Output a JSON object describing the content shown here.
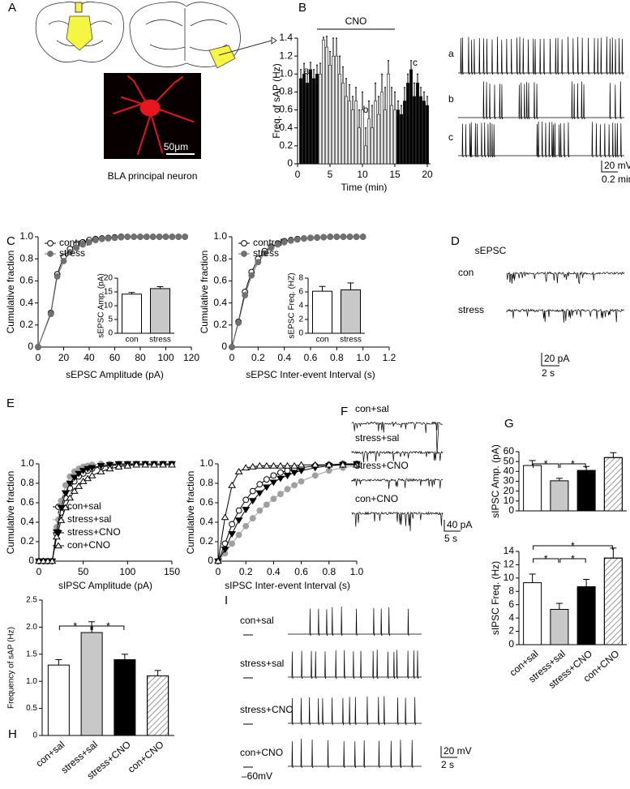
{
  "panels": [
    "A",
    "B",
    "C",
    "D",
    "E",
    "F",
    "G",
    "H",
    "I"
  ],
  "panel_a": {
    "caption": "BLA principal neuron",
    "scale": "50μm"
  },
  "panel_b_traces": {
    "labels": [
      "a",
      "b",
      "c"
    ],
    "scale": [
      "20 mV",
      "0.2 min"
    ]
  },
  "panel_d": {
    "title": "sEPSC",
    "labels": [
      "con",
      "stress"
    ],
    "scale": [
      "20 pA",
      "2 s"
    ]
  },
  "panel_f": {
    "labels": [
      "con+sal",
      "stress+sal",
      "stress+CNO",
      "con+CNO"
    ],
    "scale": [
      "40 pA",
      "5 s"
    ]
  },
  "panel_i": {
    "labels": [
      "con+sal",
      "stress+sal",
      "stress+CNO",
      "con+CNO"
    ],
    "scale": [
      "20 mV",
      "2 s"
    ],
    "baseline": "–60mV"
  },
  "chart_data": [
    {
      "type": "bar",
      "xlabel": "Time (min)",
      "ylabel": "Freq. of sAP (Hz)",
      "annotations": [
        "CNO",
        "a",
        "b",
        "c"
      ],
      "cno_range": [
        3,
        15
      ],
      "x": [
        0.5,
        1,
        1.5,
        2,
        2.5,
        3,
        3.5,
        4,
        4.5,
        5,
        5.5,
        6,
        6.5,
        7,
        7.5,
        8,
        8.5,
        9,
        9.5,
        10,
        10.5,
        11,
        11.5,
        12,
        12.5,
        13,
        13.5,
        14,
        14.5,
        15,
        15.5,
        16,
        16.5,
        17,
        17.5,
        18,
        18.5,
        19,
        19.5,
        20
      ],
      "values": [
        0.95,
        1.0,
        0.9,
        1.05,
        0.95,
        1.0,
        1.0,
        1.38,
        1.3,
        1.1,
        1.2,
        1.2,
        1.0,
        0.9,
        0.75,
        0.7,
        0.6,
        0.7,
        0.4,
        0.6,
        0.2,
        0.5,
        0.4,
        0.7,
        0.55,
        0.8,
        0.6,
        1.0,
        0.65,
        0.6,
        0.6,
        0.55,
        0.7,
        0.9,
        1.05,
        0.75,
        0.9,
        0.75,
        0.7,
        0.65
      ],
      "errors": [
        0.1,
        0.12,
        0.1,
        0.08,
        0.1,
        0.1,
        0.12,
        0.03,
        0.12,
        0.15,
        0.2,
        0.2,
        0.2,
        0.18,
        0.2,
        0.18,
        0.15,
        0.15,
        0.2,
        0.2,
        0.2,
        0.2,
        0.25,
        0.2,
        0.2,
        0.2,
        0.25,
        0.15,
        0.2,
        0.2,
        0.1,
        0.1,
        0.15,
        0.1,
        0.1,
        0.15,
        0.1,
        0.1,
        0.1,
        0.1
      ],
      "colors": [
        "#000000",
        "#000000",
        "#000000",
        "#000000",
        "#000000",
        "#000000",
        "#e8e8e8",
        "#e8e8e8",
        "#e8e8e8",
        "#e8e8e8",
        "#e8e8e8",
        "#e8e8e8",
        "#e8e8e8",
        "#e8e8e8",
        "#e8e8e8",
        "#e8e8e8",
        "#e8e8e8",
        "#e8e8e8",
        "#e8e8e8",
        "#e8e8e8",
        "#e8e8e8",
        "#e8e8e8",
        "#e8e8e8",
        "#e8e8e8",
        "#e8e8e8",
        "#e8e8e8",
        "#e8e8e8",
        "#e8e8e8",
        "#e8e8e8",
        "#e8e8e8",
        "#000000",
        "#000000",
        "#000000",
        "#000000",
        "#000000",
        "#000000",
        "#000000",
        "#000000",
        "#000000",
        "#000000"
      ],
      "xlim": [
        0,
        20.5
      ],
      "xticks": [
        0,
        5,
        10,
        15,
        20
      ],
      "ylim": [
        0,
        1.4
      ],
      "yticks": [
        0,
        0.2,
        0.4,
        0.6,
        0.8,
        {
          "value": 1,
          "label": "1.0"
        },
        1.2,
        1.4
      ]
    },
    {
      "type": "line",
      "xlabel": "sEPSC Amplitude (pA)",
      "ylabel": "Cumulative fraction",
      "x": [
        0,
        10,
        15,
        20,
        25,
        30,
        35,
        40,
        45,
        50,
        55,
        60,
        65,
        70,
        75,
        80,
        85,
        90,
        95,
        100,
        105,
        110,
        115
      ],
      "series": [
        {
          "name": "control",
          "color": "#000000",
          "marker": "open-circle",
          "values": [
            0,
            0.31,
            0.66,
            0.82,
            0.89,
            0.93,
            0.95,
            0.97,
            0.98,
            0.985,
            0.99,
            0.995,
            1,
            1,
            1,
            1,
            1,
            1,
            1,
            1,
            1,
            1,
            1
          ]
        },
        {
          "name": "stress",
          "color": "#707070",
          "marker": "filled-circle",
          "values": [
            0,
            0.3,
            0.64,
            0.78,
            0.86,
            0.9,
            0.93,
            0.95,
            0.97,
            0.98,
            0.985,
            0.99,
            0.995,
            1,
            1,
            1,
            1,
            1,
            1,
            1,
            1,
            1,
            1
          ]
        }
      ],
      "legend": "top-left",
      "xlim": [
        0,
        120
      ],
      "xticks": [
        0,
        20,
        40,
        60,
        80,
        100,
        120
      ],
      "ylim": [
        0,
        1
      ],
      "yticks": [
        0,
        0.2,
        0.4,
        0.6,
        0.8,
        {
          "value": 1,
          "label": "1.0"
        }
      ]
    },
    {
      "type": "bar",
      "ylabel": "sEPSC Amp. (pA)",
      "categories": [
        "con",
        "stress"
      ],
      "values": [
        14.2,
        16.2
      ],
      "errors": [
        0.6,
        0.7
      ],
      "colors": [
        "#ffffff",
        "#c8c8c8"
      ],
      "ylim": [
        0,
        20
      ],
      "yticks": [
        0,
        5,
        10,
        15,
        20
      ]
    },
    {
      "type": "line",
      "xlabel": "sEPSC Inter-event Interval (s)",
      "ylabel": "Cumulative fraction",
      "x": [
        0,
        0.05,
        0.1,
        0.15,
        0.2,
        0.25,
        0.3,
        0.35,
        0.4,
        0.45,
        0.5,
        0.55,
        0.6,
        0.65,
        0.7,
        0.75,
        0.8,
        0.85,
        0.9,
        0.95,
        1.0
      ],
      "series": [
        {
          "name": "control",
          "color": "#000000",
          "marker": "open-circle",
          "values": [
            0,
            0.23,
            0.5,
            0.68,
            0.8,
            0.87,
            0.91,
            0.94,
            0.96,
            0.97,
            0.98,
            0.985,
            0.99,
            0.993,
            0.996,
            1,
            1,
            1,
            1,
            1,
            1
          ]
        },
        {
          "name": "stress",
          "color": "#707070",
          "marker": "filled-circle",
          "values": [
            0,
            0.22,
            0.47,
            0.65,
            0.77,
            0.85,
            0.9,
            0.93,
            0.95,
            0.965,
            0.975,
            0.985,
            0.99,
            0.993,
            0.996,
            1,
            1,
            1,
            1,
            1,
            1
          ]
        }
      ],
      "legend": "top-left",
      "xlim": [
        0,
        1.2
      ],
      "xticks": [
        0,
        0.2,
        0.4,
        0.6,
        0.8,
        {
          "value": 1,
          "label": "1.0"
        },
        1.2
      ],
      "ylim": [
        0,
        1
      ],
      "yticks": [
        0,
        0.2,
        0.4,
        0.6,
        0.8,
        {
          "value": 1,
          "label": "1.0"
        }
      ]
    },
    {
      "type": "bar",
      "ylabel": "sEPSC Freq. (HZ)",
      "categories": [
        "con",
        "stress"
      ],
      "values": [
        6.1,
        6.3
      ],
      "errors": [
        0.7,
        1.0
      ],
      "colors": [
        "#ffffff",
        "#c8c8c8"
      ],
      "ylim": [
        0,
        8
      ],
      "yticks": [
        0,
        2,
        4,
        6,
        8
      ]
    },
    {
      "type": "line",
      "xlabel": "sIPSC Amplitude (pA)",
      "ylabel": "Cumulative fraction",
      "x": [
        0,
        5,
        10,
        15,
        20,
        25,
        30,
        35,
        40,
        45,
        50,
        55,
        60,
        70,
        80,
        90,
        100,
        110,
        120,
        130,
        140,
        150
      ],
      "series": [
        {
          "name": "con+sal",
          "color": "#000000",
          "marker": "open-circle",
          "values": [
            0,
            0,
            0,
            0,
            0.28,
            0.5,
            0.65,
            0.75,
            0.82,
            0.87,
            0.9,
            0.93,
            0.95,
            0.97,
            0.98,
            0.99,
            0.99,
            1,
            1,
            1,
            1,
            1
          ]
        },
        {
          "name": "stress+sal",
          "color": "#a0a0a0",
          "marker": "filled-circle",
          "values": [
            0,
            0,
            0,
            0,
            0.35,
            0.62,
            0.78,
            0.87,
            0.92,
            0.95,
            0.97,
            0.98,
            0.99,
            1,
            1,
            1,
            1,
            1,
            1,
            1,
            1,
            1
          ]
        },
        {
          "name": "stress+CNO",
          "color": "#000000",
          "marker": "filled-triangle-down",
          "values": [
            0,
            0,
            0,
            0,
            0.3,
            0.55,
            0.7,
            0.8,
            0.86,
            0.9,
            0.93,
            0.95,
            0.96,
            0.98,
            0.99,
            1,
            1,
            1,
            1,
            1,
            1,
            1
          ]
        },
        {
          "name": "con+CNO",
          "color": "#000000",
          "marker": "open-triangle-up",
          "values": [
            0,
            0,
            0,
            0,
            0.25,
            0.42,
            0.55,
            0.65,
            0.72,
            0.77,
            0.82,
            0.85,
            0.88,
            0.92,
            0.95,
            0.97,
            0.98,
            0.99,
            0.99,
            0.99,
            0.99,
            0.99
          ]
        }
      ],
      "legend": "bottom-right",
      "xlim": [
        0,
        150
      ],
      "xticks": [
        0,
        50,
        100,
        150
      ],
      "ylim": [
        0,
        1
      ],
      "yticks": [
        0,
        0.2,
        0.4,
        0.6,
        0.8,
        {
          "value": 1,
          "label": "1.0"
        }
      ]
    },
    {
      "type": "line",
      "xlabel": "sIPSC Inter-event Interval (s)",
      "ylabel": "Cumulative fraction",
      "x": [
        0,
        0.05,
        0.1,
        0.15,
        0.2,
        0.25,
        0.3,
        0.35,
        0.4,
        0.45,
        0.5,
        0.55,
        0.6,
        0.7,
        0.8,
        0.9,
        1.0
      ],
      "series": [
        {
          "color": "#000000",
          "marker": "open-circle",
          "values": [
            0,
            0.18,
            0.38,
            0.52,
            0.63,
            0.72,
            0.79,
            0.84,
            0.88,
            0.91,
            0.93,
            0.95,
            0.96,
            0.98,
            0.99,
            1,
            1
          ]
        },
        {
          "color": "#a0a0a0",
          "marker": "filled-circle",
          "values": [
            0,
            0.08,
            0.18,
            0.27,
            0.36,
            0.44,
            0.52,
            0.58,
            0.64,
            0.69,
            0.74,
            0.78,
            0.82,
            0.88,
            0.93,
            0.96,
            0.98
          ]
        },
        {
          "color": "#000000",
          "marker": "filled-triangle-down",
          "values": [
            0,
            0.12,
            0.28,
            0.42,
            0.53,
            0.62,
            0.7,
            0.76,
            0.81,
            0.85,
            0.88,
            0.91,
            0.93,
            0.96,
            0.98,
            0.99,
            1
          ]
        },
        {
          "color": "#000000",
          "marker": "open-triangle-up",
          "values": [
            0,
            0.45,
            0.78,
            0.92,
            0.96,
            0.97,
            0.98,
            0.98,
            0.98,
            0.98,
            0.98,
            0.98,
            0.99,
            0.99,
            0.99,
            0.99,
            0.99
          ]
        }
      ],
      "xlim": [
        0,
        1
      ],
      "xticks": [
        0,
        0.2,
        0.4,
        0.6,
        0.8,
        {
          "value": 1,
          "label": "1.0"
        }
      ],
      "ylim": [
        0,
        1
      ],
      "yticks": [
        0,
        0.2,
        0.4,
        0.6,
        0.8,
        {
          "value": 1,
          "label": "1.0"
        }
      ]
    },
    {
      "type": "bar",
      "ylabel": "sIPSC Amp. (pA)",
      "annotations": [
        "*",
        "*"
      ],
      "values": [
        46,
        30.5,
        41,
        54
      ],
      "errors": [
        5,
        2.5,
        4,
        5
      ],
      "colors": [
        "#ffffff",
        "#c8c8c8",
        "#000000",
        "#ffffff"
      ],
      "hatch": [
        false,
        false,
        false,
        true
      ],
      "ylim": [
        0,
        60
      ],
      "yticks": [
        0,
        10,
        20,
        30,
        40,
        50,
        60
      ]
    },
    {
      "type": "bar",
      "ylabel": "sIPSC Freq. (Hz)",
      "annotations": [
        "*",
        "*",
        "*"
      ],
      "categories": [
        "con+sal",
        "stress+sal",
        "stress+CNO",
        "con+CNO"
      ],
      "values": [
        9.3,
        5.3,
        8.7,
        13
      ],
      "errors": [
        1.3,
        0.9,
        1.1,
        1.5
      ],
      "colors": [
        "#ffffff",
        "#c8c8c8",
        "#000000",
        "#ffffff"
      ],
      "hatch": [
        false,
        false,
        false,
        true
      ],
      "ylim": [
        0,
        14
      ],
      "yticks": [
        0,
        2,
        4,
        6,
        8,
        10,
        12,
        14
      ]
    },
    {
      "type": "bar",
      "ylabel": "Frequency of sAP (Hz)",
      "annotations": [
        "*",
        "*"
      ],
      "categories": [
        "con+sal",
        "stress+sal",
        "stress+CNO",
        "con+CNO"
      ],
      "values": [
        1.3,
        1.9,
        1.4,
        1.1
      ],
      "errors": [
        0.1,
        0.2,
        0.1,
        0.1
      ],
      "colors": [
        "#ffffff",
        "#c8c8c8",
        "#000000",
        "#ffffff"
      ],
      "hatch": [
        false,
        false,
        false,
        true
      ],
      "ylim": [
        0,
        2.5
      ],
      "yticks": [
        0,
        0.5,
        {
          "value": 1,
          "label": "1.0"
        },
        1.5,
        {
          "value": 2,
          "label": "2.0"
        },
        2.5
      ]
    }
  ]
}
